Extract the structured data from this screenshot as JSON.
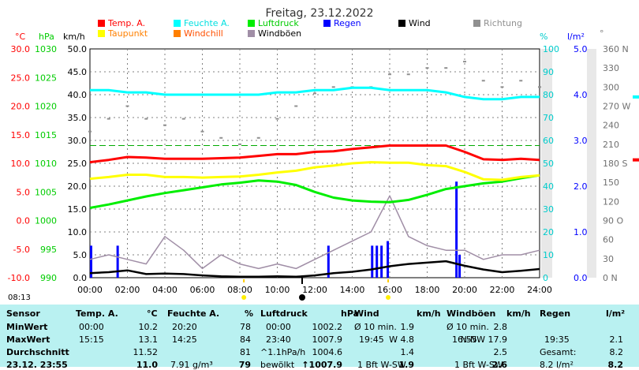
{
  "title": "Freitag, 23.12.2022",
  "colors": {
    "temp": "#ff0000",
    "humidity": "#00ffff",
    "pressure": "#00ee00",
    "rain": "#0000ff",
    "wind": "#000000",
    "direction": "#909090",
    "dewpoint": "#ffff00",
    "windchill": "#ff7f00",
    "gusts": "#a08ea6",
    "table_bg": "#b9f1f1"
  },
  "legend": [
    {
      "label": "Temp. A.",
      "color": "#ff0000",
      "textcolor": "#ff0000"
    },
    {
      "label": "Feuchte A.",
      "color": "#00ffff",
      "textcolor": "#00e0e0"
    },
    {
      "label": "Luftdruck",
      "color": "#00ee00",
      "textcolor": "#00cc00"
    },
    {
      "label": "Regen",
      "color": "#0000ff",
      "textcolor": "#0000ff"
    },
    {
      "label": "Wind",
      "color": "#000000",
      "textcolor": "#000000"
    },
    {
      "label": "Richtung",
      "color": "#909090",
      "textcolor": "#909090"
    },
    {
      "label": "Taupunkt",
      "color": "#ffff00",
      "textcolor": "#ff8000"
    },
    {
      "label": "Windchill",
      "color": "#ff7f00",
      "textcolor": "#ff5000"
    },
    {
      "label": "Windböen",
      "color": "#a08ea6",
      "textcolor": "#000000"
    }
  ],
  "axes": {
    "temp": {
      "unit": "°C",
      "ticks": [
        "30.0",
        "25.0",
        "20.0",
        "15.0",
        "10.0",
        "5.0",
        "0.0",
        "-5.0",
        "-10.0"
      ]
    },
    "pressure": {
      "unit": "hPa",
      "ticks": [
        "1030",
        "1025",
        "1020",
        "1015",
        "1010",
        "1005",
        "1000",
        "995",
        "990"
      ]
    },
    "wind": {
      "unit": "km/h",
      "ticks": [
        "50.0",
        "45.0",
        "40.0",
        "35.0",
        "30.0",
        "25.0",
        "20.0",
        "15.0",
        "10.0",
        "5.0",
        "0.0"
      ]
    },
    "humidity": {
      "unit": "%",
      "ticks": [
        "100",
        "90",
        "80",
        "70",
        "60",
        "50",
        "40",
        "30",
        "20",
        "10",
        "0"
      ]
    },
    "rain": {
      "unit": "l/m²",
      "ticks": [
        "5.0",
        "4.0",
        "3.0",
        "2.0",
        "1.0",
        "0.0"
      ]
    },
    "direction": {
      "unit": "°",
      "ticks": [
        "360 N",
        "330",
        "300",
        "270 W",
        "240",
        "210",
        "180 S",
        "150",
        "120",
        "90 O",
        "60",
        "30",
        "0 N"
      ]
    },
    "time": [
      "00:00",
      "02:00",
      "04:00",
      "06:00",
      "08:00",
      "10:00",
      "12:00",
      "14:00",
      "16:00",
      "18:00",
      "20:00",
      "22:00",
      "24:00"
    ]
  },
  "sun": {
    "rise": "08:13",
    "set": "15:55"
  },
  "chart_data": {
    "type": "line",
    "x": [
      "00:00",
      "01:00",
      "02:00",
      "03:00",
      "04:00",
      "05:00",
      "06:00",
      "07:00",
      "08:00",
      "09:00",
      "10:00",
      "11:00",
      "12:00",
      "13:00",
      "14:00",
      "15:00",
      "16:00",
      "17:00",
      "18:00",
      "19:00",
      "20:00",
      "21:00",
      "22:00",
      "23:00",
      "24:00"
    ],
    "series": [
      {
        "name": "Temp. A.",
        "unit": "°C",
        "values": [
          10.2,
          10.6,
          11.1,
          11.0,
          10.8,
          10.8,
          10.8,
          10.9,
          11.0,
          11.3,
          11.6,
          11.6,
          12.0,
          12.1,
          12.5,
          12.8,
          13.1,
          13.1,
          13.1,
          13.1,
          12.0,
          10.7,
          10.6,
          10.8,
          10.6
        ]
      },
      {
        "name": "Feuchte A.",
        "unit": "%",
        "values": [
          82,
          82,
          81,
          81,
          80,
          80,
          80,
          80,
          80,
          80,
          81,
          81,
          82,
          82,
          83,
          83,
          82,
          82,
          82,
          81,
          79,
          78,
          78,
          79,
          79
        ]
      },
      {
        "name": "Luftdruck",
        "unit": "hPa",
        "values": [
          1002.2,
          1002.8,
          1003.5,
          1004.2,
          1004.8,
          1005.3,
          1005.8,
          1006.3,
          1006.6,
          1007.0,
          1006.8,
          1006.2,
          1005.0,
          1004.0,
          1003.5,
          1003.3,
          1003.2,
          1003.6,
          1004.5,
          1005.5,
          1006.0,
          1006.5,
          1006.8,
          1007.4,
          1007.9
        ]
      },
      {
        "name": "Taupunkt",
        "unit": "°C",
        "values": [
          7.3,
          7.6,
          8.0,
          8.0,
          7.6,
          7.6,
          7.5,
          7.6,
          7.7,
          8.0,
          8.4,
          8.7,
          9.3,
          9.6,
          10.0,
          10.2,
          10.1,
          10.1,
          9.7,
          9.5,
          8.5,
          7.2,
          7.1,
          7.6,
          7.9
        ]
      },
      {
        "name": "Wind",
        "unit": "km/h",
        "values": [
          1.0,
          1.2,
          1.6,
          0.8,
          0.9,
          0.8,
          0.5,
          0.3,
          0.2,
          0.2,
          0.3,
          0.2,
          0.5,
          1.0,
          1.3,
          1.8,
          2.5,
          3.0,
          3.3,
          3.6,
          2.6,
          1.8,
          1.2,
          1.5,
          1.9
        ]
      },
      {
        "name": "Windböen",
        "unit": "km/h",
        "values": [
          4.0,
          5.0,
          4.0,
          3.0,
          9.0,
          6.0,
          2.0,
          5.0,
          3.0,
          2.0,
          3.0,
          2.0,
          4.0,
          6.0,
          8.0,
          10.0,
          17.9,
          9.0,
          7.0,
          6.0,
          6.0,
          4.0,
          5.0,
          5.0,
          6.0
        ]
      },
      {
        "name": "Regen",
        "unit": "l/m²",
        "bars": [
          {
            "x": "00:00",
            "value": 0.7
          },
          {
            "x": "01:25",
            "value": 0.7
          },
          {
            "x": "12:40",
            "value": 0.7
          },
          {
            "x": "15:00",
            "value": 0.7
          },
          {
            "x": "15:15",
            "value": 0.7
          },
          {
            "x": "15:30",
            "value": 0.7
          },
          {
            "x": "15:50",
            "value": 0.8
          },
          {
            "x": "19:30",
            "value": 2.1
          },
          {
            "x": "19:40",
            "value": 0.5
          }
        ]
      },
      {
        "name": "Richtung",
        "unit": "°",
        "values": [
          230,
          250,
          270,
          250,
          240,
          250,
          230,
          220,
          210,
          220,
          250,
          270,
          290,
          300,
          300,
          300,
          320,
          320,
          330,
          330,
          340,
          310,
          300,
          310,
          300
        ]
      }
    ],
    "ylim_temp": [
      -10,
      30
    ],
    "ylim_pressure": [
      990,
      1030
    ],
    "ylim_wind": [
      0,
      50
    ],
    "ylim_humidity": [
      0,
      100
    ],
    "ylim_rain": [
      0,
      5
    ],
    "ylim_direction": [
      0,
      360
    ],
    "reference_line": {
      "series": "Temp. A.",
      "value": 13.1
    },
    "grid": true
  },
  "table": {
    "headers": [
      {
        "text": "Sensor",
        "x": 8
      },
      {
        "text": "Temp. A.",
        "x": 96
      },
      {
        "text": "°C",
        "x": 186
      },
      {
        "text": "Feuchte A.",
        "x": 212
      },
      {
        "text": "%",
        "x": 310
      },
      {
        "text": "Luftdruck",
        "x": 330
      },
      {
        "text": "hPa",
        "x": 432
      },
      {
        "text": "Wind",
        "x": 449
      },
      {
        "text": "km/h",
        "x": 528
      },
      {
        "text": "Windböen",
        "x": 566
      },
      {
        "text": "km/h",
        "x": 642
      },
      {
        "text": "Regen",
        "x": 684
      },
      {
        "text": "l/m²",
        "x": 768
      }
    ],
    "rows": [
      {
        "label": "MinWert",
        "cells": [
          {
            "t": "00:00",
            "x": 100
          },
          {
            "t": "10.2",
            "x": 200,
            "r": 1
          },
          {
            "t": "20:20",
            "x": 218
          },
          {
            "t": "78",
            "x": 318,
            "r": 1
          },
          {
            "t": "00:00",
            "x": 337
          },
          {
            "t": "1002.2",
            "x": 434,
            "r": 1
          },
          {
            "t": "Ø 10 min.",
            "x": 449
          },
          {
            "t": "1.9",
            "x": 525,
            "r": 1
          },
          {
            "t": "Ø 10 min.",
            "x": 566
          },
          {
            "t": "2.8",
            "x": 643,
            "r": 1
          }
        ]
      },
      {
        "label": "MaxWert",
        "cells": [
          {
            "t": "15:15",
            "x": 100
          },
          {
            "t": "13.1",
            "x": 200,
            "r": 1
          },
          {
            "t": "14:25",
            "x": 218
          },
          {
            "t": "84",
            "x": 318,
            "r": 1
          },
          {
            "t": "23:40",
            "x": 337
          },
          {
            "t": "1007.9",
            "x": 434,
            "r": 1
          },
          {
            "t": "19:45",
            "x": 455
          },
          {
            "t": "W 4.8",
            "x": 525,
            "r": 1
          },
          {
            "t": "16:55",
            "x": 573
          },
          {
            "t": "N-NW 17.9",
            "x": 643,
            "r": 1
          },
          {
            "t": "19:35",
            "x": 690
          },
          {
            "t": "2.1",
            "x": 790,
            "r": 1
          }
        ]
      },
      {
        "label": "Durchschnitt",
        "cells": [
          {
            "t": "11.52",
            "x": 200,
            "r": 1
          },
          {
            "t": "81",
            "x": 318,
            "r": 1
          },
          {
            "t": "^1.1hPa/h",
            "x": 330
          },
          {
            "t": "1004.6",
            "x": 434,
            "r": 1
          },
          {
            "t": "1.4",
            "x": 525,
            "r": 1
          },
          {
            "t": "2.5",
            "x": 643,
            "r": 1
          },
          {
            "t": "Gesamt:",
            "x": 684
          },
          {
            "t": "8.2",
            "x": 790,
            "r": 1
          }
        ]
      },
      {
        "label": "23.12. 23:55",
        "cells": [
          {
            "t": "11.0",
            "x": 200,
            "r": 1,
            "b": 1
          },
          {
            "t": "7.91 g/m³",
            "x": 216
          },
          {
            "t": "79",
            "x": 318,
            "r": 1,
            "b": 1
          },
          {
            "t": "bewölkt",
            "x": 330
          },
          {
            "t": "↑1007.9",
            "x": 434,
            "r": 1,
            "b": 1
          },
          {
            "t": "1 Bft W-SW",
            "x": 453
          },
          {
            "t": "1.9",
            "x": 525,
            "r": 1,
            "b": 1
          },
          {
            "t": "1 Bft W-SW",
            "x": 576
          },
          {
            "t": "2.6",
            "x": 643,
            "r": 1,
            "b": 1
          },
          {
            "t": "8.2 l/m²",
            "x": 684
          },
          {
            "t": "8.2",
            "x": 790,
            "r": 1,
            "b": 1
          }
        ]
      }
    ]
  }
}
